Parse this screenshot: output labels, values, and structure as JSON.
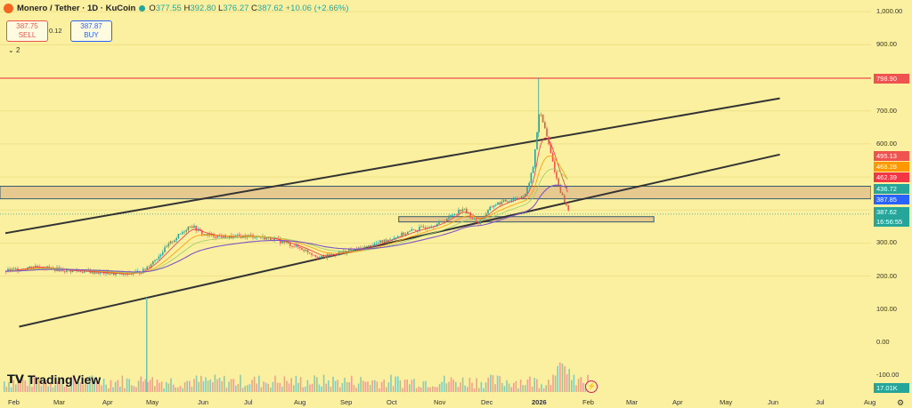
{
  "header": {
    "title": "Monero / Tether · 1D · KuCoin",
    "ohlc": [
      {
        "key": "O",
        "value": "377.55"
      },
      {
        "key": "H",
        "value": "392.80"
      },
      {
        "key": "L",
        "value": "376.27"
      },
      {
        "key": "C",
        "value": "387.62"
      },
      {
        "key": "",
        "value": "+10.06 (+2.66%)"
      }
    ]
  },
  "trade": {
    "sell_price": "387.75",
    "sell_label": "SELL",
    "spread": "0.12",
    "buy_price": "387.87",
    "buy_label": "BUY"
  },
  "indicators": {
    "collapse_label": "2"
  },
  "branding": {
    "logo_text": "TradingView"
  },
  "volume_label": "17.01K",
  "colors": {
    "background": "#fbf0a0",
    "bull": "#26a69a",
    "bear": "#ef5350",
    "resistance_line": "#ef5350",
    "channel_line": "#333333",
    "zone_fill": "#e6c98f"
  },
  "chart_data": {
    "type": "candlestick",
    "symbol": "Monero / Tether",
    "interval": "1D",
    "exchange": "KuCoin",
    "y_ticks": [
      "1,000.00",
      "900.00",
      "700.00",
      "600.00",
      "300.00",
      "200.00",
      "100.00",
      "0.00",
      "-100.00"
    ],
    "x_ticks": [
      "Feb",
      "Mar",
      "Apr",
      "May",
      "Jun",
      "Jul",
      "Aug",
      "Sep",
      "Oct",
      "Nov",
      "Dec",
      "2026",
      "Feb",
      "Mar",
      "Apr",
      "May",
      "Jun",
      "Jul",
      "Aug"
    ],
    "ylim": [
      -110,
      1020
    ],
    "price_labels": [
      {
        "text": "798.90",
        "value": 798.9,
        "color": "#ef5350"
      },
      {
        "text": "495.13",
        "value": 495.13,
        "color": "#ef5350"
      },
      {
        "text": "468.28",
        "value": 468.28,
        "color": "#ff9800"
      },
      {
        "text": "462.39",
        "value": 462.39,
        "color": "#f23645"
      },
      {
        "text": "436.72",
        "value": 436.72,
        "color": "#26a69a"
      },
      {
        "text": "387.85",
        "value": 387.85,
        "color": "#2962ff"
      },
      {
        "text": "387.62",
        "value": 387.62,
        "color": "#26a69a"
      }
    ],
    "countdown": "16:56:55",
    "horizontal_line": 798.9,
    "zones": [
      {
        "from": 434,
        "to": 472
      },
      {
        "from": 364,
        "to": 380
      }
    ],
    "channel_lines": [
      {
        "from": [
          "2025-02-01",
          330
        ],
        "to": [
          "2026-06-20",
          738
        ]
      },
      {
        "from": [
          "2025-02-10",
          47
        ],
        "to": [
          "2026-06-20",
          568
        ]
      }
    ],
    "price_path": [
      [
        "2025-02-01",
        215
      ],
      [
        "2025-02-20",
        230
      ],
      [
        "2025-03-10",
        218
      ],
      [
        "2025-04-01",
        212
      ],
      [
        "2025-04-20",
        205
      ],
      [
        "2025-05-01",
        215
      ],
      [
        "2025-05-10",
        255
      ],
      [
        "2025-05-20",
        305
      ],
      [
        "2025-06-01",
        355
      ],
      [
        "2025-06-10",
        325
      ],
      [
        "2025-06-25",
        318
      ],
      [
        "2025-07-10",
        322
      ],
      [
        "2025-07-25",
        312
      ],
      [
        "2025-08-10",
        288
      ],
      [
        "2025-08-25",
        255
      ],
      [
        "2025-09-05",
        270
      ],
      [
        "2025-09-20",
        283
      ],
      [
        "2025-10-01",
        300
      ],
      [
        "2025-10-10",
        315
      ],
      [
        "2025-10-25",
        340
      ],
      [
        "2025-11-10",
        360
      ],
      [
        "2025-11-25",
        405
      ],
      [
        "2025-12-05",
        360
      ],
      [
        "2025-12-15",
        415
      ],
      [
        "2025-12-25",
        430
      ],
      [
        "2026-01-05",
        445
      ],
      [
        "2026-01-10",
        530
      ],
      [
        "2026-01-14",
        700
      ],
      [
        "2026-01-18",
        640
      ],
      [
        "2026-01-22",
        560
      ],
      [
        "2026-01-26",
        480
      ],
      [
        "2026-01-30",
        430
      ],
      [
        "2026-02-03",
        387.62
      ]
    ]
  }
}
